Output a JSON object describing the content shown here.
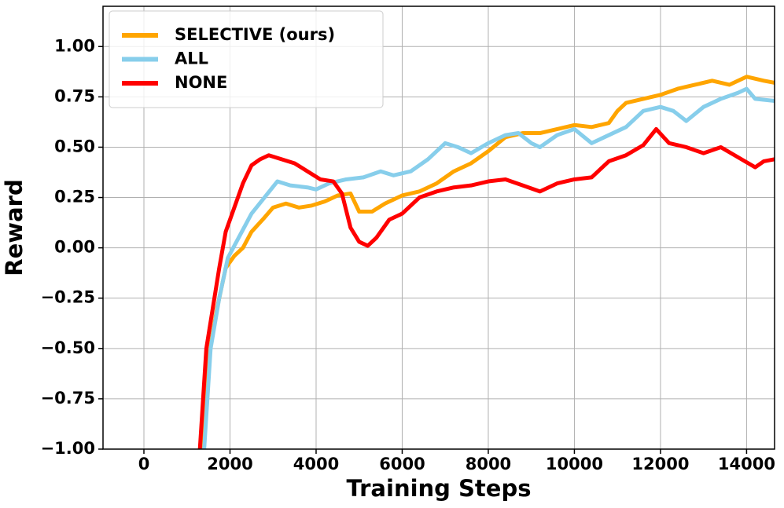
{
  "chart_data": {
    "type": "line",
    "xlabel": "Training Steps",
    "ylabel": "Reward",
    "xlim": [
      -950,
      14650
    ],
    "ylim": [
      -1.0,
      1.2
    ],
    "xticks": [
      0,
      2000,
      4000,
      6000,
      8000,
      10000,
      12000,
      14000
    ],
    "yticks": [
      {
        "value": -1.0,
        "label": "−1.00"
      },
      {
        "value": -0.75,
        "label": "−0.75"
      },
      {
        "value": -0.5,
        "label": "−0.50"
      },
      {
        "value": -0.25,
        "label": "−0.25"
      },
      {
        "value": 0.0,
        "label": "0.00"
      },
      0.25,
      {
        "value": 0.5,
        "label": "0.50"
      },
      0.75,
      {
        "value": 1.0,
        "label": "1.00"
      }
    ],
    "grid": true,
    "legend": "upper left",
    "series": [
      {
        "name": "SELECTIVE (ours)",
        "color": "#ffa500",
        "x": [
          1350,
          1500,
          1700,
          1900,
          2100,
          2300,
          2500,
          2800,
          3000,
          3300,
          3600,
          3900,
          4200,
          4500,
          4800,
          5000,
          5300,
          5600,
          6000,
          6400,
          6800,
          7200,
          7600,
          8000,
          8400,
          8800,
          9200,
          9600,
          10000,
          10400,
          10800,
          11000,
          11200,
          11600,
          12000,
          12400,
          12800,
          13200,
          13600,
          14000,
          14400,
          14650
        ],
        "values": [
          -1.0,
          -0.55,
          -0.3,
          -0.1,
          -0.04,
          0.0,
          0.08,
          0.15,
          0.2,
          0.22,
          0.2,
          0.21,
          0.23,
          0.26,
          0.27,
          0.18,
          0.18,
          0.22,
          0.26,
          0.28,
          0.32,
          0.38,
          0.42,
          0.48,
          0.55,
          0.57,
          0.57,
          0.59,
          0.61,
          0.6,
          0.62,
          0.68,
          0.72,
          0.74,
          0.76,
          0.79,
          0.81,
          0.83,
          0.81,
          0.85,
          0.83,
          0.82
        ]
      },
      {
        "name": "ALL",
        "color": "#87ceeb",
        "x": [
          1400,
          1550,
          1750,
          1950,
          2200,
          2500,
          2800,
          3100,
          3400,
          3800,
          4000,
          4300,
          4700,
          5100,
          5500,
          5800,
          6200,
          6600,
          7000,
          7300,
          7600,
          8000,
          8400,
          8700,
          9000,
          9200,
          9600,
          10000,
          10400,
          10800,
          11200,
          11600,
          12000,
          12300,
          12600,
          13000,
          13400,
          13800,
          14000,
          14200,
          14650
        ],
        "values": [
          -1.0,
          -0.5,
          -0.25,
          -0.05,
          0.05,
          0.17,
          0.25,
          0.33,
          0.31,
          0.3,
          0.29,
          0.32,
          0.34,
          0.35,
          0.38,
          0.36,
          0.38,
          0.44,
          0.52,
          0.5,
          0.47,
          0.52,
          0.56,
          0.57,
          0.52,
          0.5,
          0.56,
          0.59,
          0.52,
          0.56,
          0.6,
          0.68,
          0.7,
          0.68,
          0.63,
          0.7,
          0.74,
          0.77,
          0.79,
          0.74,
          0.73
        ]
      },
      {
        "name": "NONE",
        "color": "#ff0000",
        "x": [
          1300,
          1450,
          1600,
          1750,
          1900,
          2100,
          2300,
          2500,
          2700,
          2900,
          3200,
          3500,
          3800,
          4100,
          4400,
          4600,
          4800,
          5000,
          5200,
          5400,
          5700,
          6000,
          6400,
          6800,
          7200,
          7600,
          8000,
          8400,
          8800,
          9200,
          9600,
          10000,
          10400,
          10800,
          11200,
          11600,
          11900,
          12200,
          12600,
          13000,
          13400,
          13800,
          14200,
          14400,
          14650
        ],
        "values": [
          -1.0,
          -0.5,
          -0.3,
          -0.1,
          0.08,
          0.2,
          0.32,
          0.41,
          0.44,
          0.46,
          0.44,
          0.42,
          0.38,
          0.34,
          0.33,
          0.27,
          0.1,
          0.03,
          0.01,
          0.05,
          0.14,
          0.17,
          0.25,
          0.28,
          0.3,
          0.31,
          0.33,
          0.34,
          0.31,
          0.28,
          0.32,
          0.34,
          0.35,
          0.43,
          0.46,
          0.51,
          0.59,
          0.52,
          0.5,
          0.47,
          0.5,
          0.45,
          0.4,
          0.43,
          0.44
        ]
      }
    ]
  }
}
